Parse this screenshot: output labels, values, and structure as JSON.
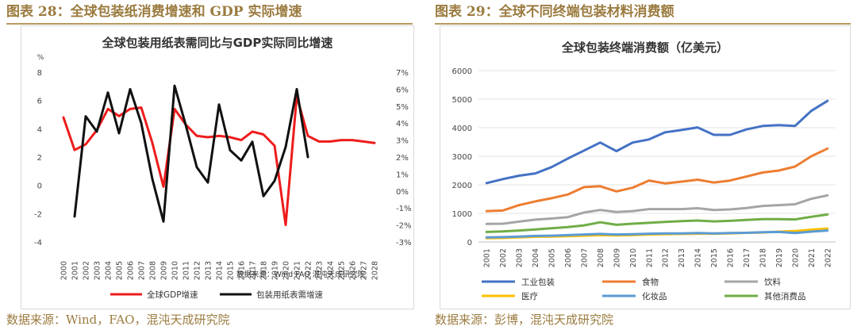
{
  "left": {
    "caption": "图表 28：全球包装纸消费增速和 GDP 实际增速",
    "source": "数据来源：Wind，FAO，混沌天成研究院",
    "chart_data": {
      "type": "line",
      "title": "全球包装用纸表需同比与GDP实际同比增速",
      "left_unit": "%",
      "note": "数据来源：Wind FAO 混沌天成研究院",
      "categories": [
        "2000",
        "2001",
        "2002",
        "2003",
        "2004",
        "2005",
        "2006",
        "2007",
        "2008",
        "2009",
        "2010",
        "2011",
        "2012",
        "2013",
        "2014",
        "2015",
        "2016",
        "2017",
        "2018",
        "2019",
        "2020",
        "2021",
        "2022",
        "2023",
        "2024",
        "2025",
        "2026",
        "2027",
        "2028"
      ],
      "y_left": {
        "min": -4,
        "max": 8,
        "ticks": [
          "-4",
          "-2",
          "0",
          "2",
          "4",
          "6",
          "8"
        ]
      },
      "y_right": {
        "min": -3,
        "max": 7,
        "ticks": [
          "-3%",
          "-2%",
          "-1%",
          "0%",
          "1%",
          "2%",
          "3%",
          "4%",
          "5%",
          "6%",
          "7%"
        ]
      },
      "series": [
        {
          "name": "全球GDP增速",
          "axis": "left",
          "color": "#ee1c1c",
          "values": [
            4.8,
            2.5,
            2.9,
            3.9,
            5.4,
            4.9,
            5.4,
            5.5,
            3.0,
            -0.1,
            5.4,
            4.3,
            3.5,
            3.4,
            3.5,
            3.4,
            3.2,
            3.8,
            3.6,
            2.8,
            -2.8,
            6.3,
            3.5,
            3.1,
            3.1,
            3.2,
            3.2,
            3.1,
            3.0
          ]
        },
        {
          "name": "包装用纸表需增速",
          "axis": "right",
          "color": "#111111",
          "values": [
            null,
            -1.5,
            4.4,
            3.5,
            5.8,
            3.4,
            6.0,
            4.0,
            0.7,
            -1.8,
            6.2,
            3.9,
            1.4,
            0.5,
            5.1,
            2.4,
            1.8,
            2.9,
            -0.3,
            0.6,
            2.6,
            6.0,
            2.0,
            null,
            null,
            null,
            null,
            null,
            null
          ]
        }
      ]
    }
  },
  "right": {
    "caption": "图表 29：全球不同终端包装材料消费额",
    "source": "数据来源：彭博，混沌天成研究院",
    "chart_data": {
      "type": "line",
      "title": "全球包装终端消费额（亿美元）",
      "categories": [
        "2001",
        "2002",
        "2003",
        "2004",
        "2005",
        "2006",
        "2007",
        "2008",
        "2009",
        "2010",
        "2011",
        "2012",
        "2013",
        "2014",
        "2015",
        "2016",
        "2017",
        "2018",
        "2019",
        "2020",
        "2021",
        "2022"
      ],
      "y": {
        "min": 0,
        "max": 6000,
        "ticks": [
          "0",
          "1000",
          "2000",
          "3000",
          "4000",
          "5000",
          "6000"
        ]
      },
      "series": [
        {
          "name": "工业包装",
          "color": "#4472c4",
          "values": [
            2060,
            2200,
            2320,
            2400,
            2620,
            2920,
            3200,
            3480,
            3180,
            3480,
            3590,
            3840,
            3920,
            4010,
            3750,
            3750,
            3940,
            4060,
            4090,
            4060,
            4590,
            4940
          ]
        },
        {
          "name": "食物",
          "color": "#ed7d31",
          "values": [
            1080,
            1100,
            1290,
            1420,
            1530,
            1660,
            1920,
            1950,
            1770,
            1900,
            2150,
            2050,
            2110,
            2180,
            2080,
            2150,
            2290,
            2430,
            2500,
            2640,
            3000,
            3270
          ]
        },
        {
          "name": "饮料",
          "color": "#a5a5a5",
          "values": [
            630,
            640,
            710,
            780,
            820,
            870,
            1030,
            1120,
            1050,
            1080,
            1150,
            1150,
            1150,
            1180,
            1120,
            1140,
            1190,
            1260,
            1290,
            1320,
            1510,
            1630
          ]
        },
        {
          "name": "医疗",
          "color": "#ffc000",
          "values": [
            130,
            140,
            160,
            180,
            190,
            200,
            220,
            240,
            230,
            240,
            260,
            270,
            280,
            290,
            290,
            300,
            320,
            330,
            360,
            380,
            430,
            470
          ]
        },
        {
          "name": "化妆品",
          "color": "#5b9bd5",
          "values": [
            160,
            170,
            190,
            210,
            220,
            240,
            260,
            280,
            260,
            270,
            290,
            300,
            300,
            310,
            300,
            310,
            320,
            340,
            350,
            310,
            360,
            400
          ]
        },
        {
          "name": "其他消费品",
          "color": "#70ad47",
          "values": [
            350,
            370,
            400,
            440,
            480,
            520,
            580,
            690,
            600,
            640,
            670,
            700,
            730,
            750,
            720,
            740,
            770,
            800,
            800,
            790,
            880,
            960
          ]
        }
      ]
    }
  }
}
